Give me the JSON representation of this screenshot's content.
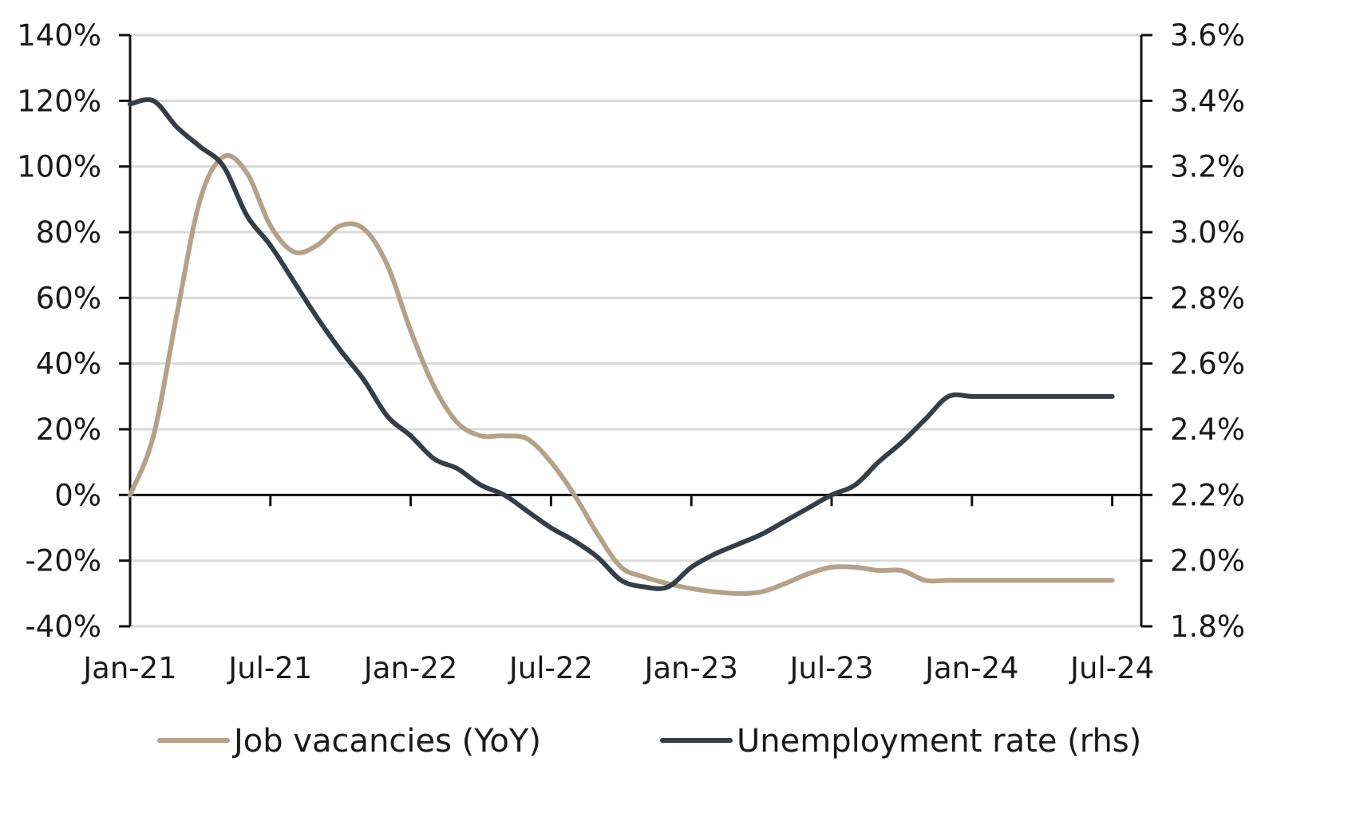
{
  "chart_data": {
    "type": "line",
    "title": "",
    "xlabel": "",
    "ylabel": "",
    "y2label": "",
    "categories": [
      "Jan-21",
      "Jul-21",
      "Jan-22",
      "Jul-22",
      "Jan-23",
      "Jul-23",
      "Jan-24",
      "Jul-24"
    ],
    "ylim": [
      -40,
      140
    ],
    "y_ticks": [
      "140%",
      "120%",
      "100%",
      "80%",
      "60%",
      "40%",
      "20%",
      "0%",
      "-20%",
      "-40%"
    ],
    "y2lim": [
      1.8,
      3.6
    ],
    "y2_ticks": [
      "3.6%",
      "3.4%",
      "3.2%",
      "3.0%",
      "2.8%",
      "2.6%",
      "2.4%",
      "2.2%",
      "2.0%",
      "1.8%"
    ],
    "grid": "horizontal",
    "legend_position": "bottom",
    "series": [
      {
        "name": "Job vacancies (YoY)",
        "axis": "left",
        "color": "#b5a18a",
        "x": [
          0,
          1,
          2,
          3,
          4,
          5,
          6,
          7,
          8,
          9,
          10,
          11,
          12,
          13,
          14,
          15,
          16,
          17,
          18,
          19,
          20,
          21,
          22,
          23,
          24,
          25,
          26,
          27,
          28,
          29,
          30,
          31,
          32,
          33,
          34,
          35,
          36,
          37,
          38,
          39,
          40,
          41,
          42
        ],
        "values": [
          0,
          18,
          55,
          90,
          103,
          98,
          82,
          74,
          76,
          82,
          81,
          70,
          50,
          33,
          22,
          18,
          18,
          17,
          10,
          0,
          -12,
          -22,
          -25,
          -27,
          -28.5,
          -29.5,
          -30,
          -29.5,
          -27,
          -24,
          -22,
          -22,
          -23,
          -23,
          -26,
          -26,
          -26,
          -26,
          -26,
          -26,
          -26,
          -26,
          -26
        ]
      },
      {
        "name": "Unemployment rate (rhs)",
        "axis": "right",
        "color": "#363d45",
        "x": [
          0,
          1,
          2,
          3,
          4,
          5,
          6,
          7,
          8,
          9,
          10,
          11,
          12,
          13,
          14,
          15,
          16,
          17,
          18,
          19,
          20,
          21,
          22,
          23,
          24,
          25,
          26,
          27,
          28,
          29,
          30,
          31,
          32,
          33,
          34,
          35,
          36,
          37,
          38,
          39,
          40,
          41,
          42
        ],
        "values": [
          3.39,
          3.4,
          3.32,
          3.26,
          3.2,
          3.05,
          2.96,
          2.85,
          2.74,
          2.64,
          2.55,
          2.44,
          2.38,
          2.31,
          2.28,
          2.23,
          2.2,
          2.15,
          2.1,
          2.06,
          2.01,
          1.94,
          1.92,
          1.92,
          1.98,
          2.02,
          2.05,
          2.08,
          2.12,
          2.16,
          2.2,
          2.23,
          2.3,
          2.36,
          2.43,
          2.5,
          2.5,
          2.5,
          2.5,
          2.5,
          2.5,
          2.5,
          2.5
        ]
      }
    ]
  }
}
